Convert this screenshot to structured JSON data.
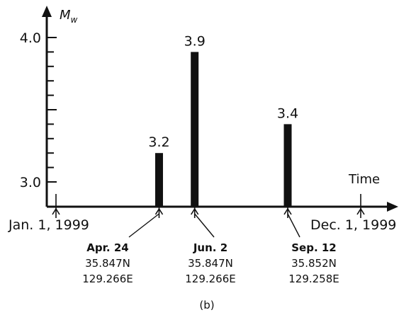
{
  "chart_data": {
    "type": "bar",
    "ylabel": "M",
    "ylabel_subscript": "w",
    "xlabel": "Time",
    "caption": "(b)",
    "x_start_label": "Jan. 1, 1999",
    "x_end_label": "Dec. 1, 1999",
    "x": [
      "1999-04-24",
      "1999-06-02",
      "1999-09-12"
    ],
    "values": [
      3.2,
      3.9,
      3.4
    ],
    "value_labels": [
      "3.2",
      "3.9",
      "3.4"
    ],
    "yticks": [
      {
        "value": 3.0,
        "label": "3.0"
      },
      {
        "value": 4.0,
        "label": "4.0"
      }
    ],
    "ylim": [
      2.95,
      4.1
    ],
    "xlim": [
      "1999-01-01",
      "1999-12-01"
    ],
    "grid": false,
    "colors": {
      "bar": "#111111",
      "axis": "#111111"
    },
    "events": [
      {
        "date_label": "Apr. 24",
        "lat": "35.847N",
        "lon": "129.266E"
      },
      {
        "date_label": "Jun. 2",
        "lat": "35.847N",
        "lon": "129.266E"
      },
      {
        "date_label": "Sep. 12",
        "lat": "35.852N",
        "lon": "129.258E"
      }
    ]
  }
}
